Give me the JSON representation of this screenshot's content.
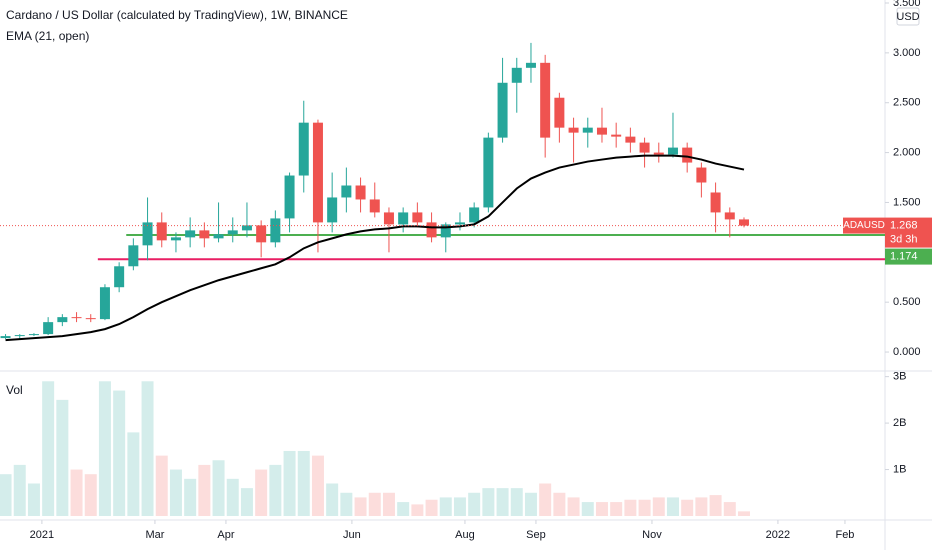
{
  "chart_data": [
    {
      "type": "candlestick",
      "title": "Cardano / US Dollar (calculated by TradingView), 1W, BINANCE",
      "axis_unit": "USD",
      "symbol": "ADAUSD",
      "countdown": "3d 3h",
      "up_color": "#26a69a",
      "down_color": "#ef5350",
      "open": [
        0.14,
        0.16,
        0.17,
        0.18,
        0.3,
        0.35,
        0.34,
        0.33,
        0.65,
        0.86,
        1.07,
        1.3,
        1.12,
        1.15,
        1.22,
        1.14,
        1.18,
        1.22,
        1.27,
        1.1,
        1.34,
        1.77,
        2.3,
        1.3,
        1.55,
        1.67,
        1.53,
        1.4,
        1.28,
        1.4,
        1.3,
        1.15,
        1.28,
        1.3,
        1.45,
        2.15,
        2.7,
        2.85,
        2.9,
        2.55,
        2.25,
        2.2,
        2.25,
        2.18,
        2.16,
        2.1,
        2.0,
        1.98,
        2.05,
        1.85,
        1.6,
        1.4,
        1.33
      ],
      "high": [
        0.18,
        0.18,
        0.19,
        0.35,
        0.38,
        0.4,
        0.38,
        0.68,
        0.9,
        1.14,
        1.55,
        1.4,
        1.2,
        1.35,
        1.3,
        1.5,
        1.35,
        1.5,
        1.32,
        1.42,
        1.8,
        2.52,
        2.33,
        1.8,
        1.85,
        1.75,
        1.7,
        1.45,
        1.45,
        1.5,
        1.4,
        1.3,
        1.4,
        1.5,
        2.2,
        2.95,
        2.95,
        3.1,
        2.98,
        2.6,
        2.35,
        2.35,
        2.45,
        2.3,
        2.25,
        2.15,
        2.1,
        2.4,
        2.1,
        1.9,
        1.7,
        1.45,
        1.35
      ],
      "low": [
        0.13,
        0.13,
        0.16,
        0.17,
        0.26,
        0.3,
        0.3,
        0.32,
        0.6,
        0.82,
        0.92,
        1.05,
        1.0,
        1.05,
        1.05,
        1.1,
        1.1,
        1.15,
        0.95,
        1.05,
        1.2,
        1.6,
        1.0,
        1.2,
        1.4,
        1.4,
        1.35,
        1.0,
        1.2,
        1.25,
        1.1,
        1.0,
        1.22,
        1.25,
        1.4,
        2.1,
        2.4,
        2.7,
        1.95,
        2.1,
        1.9,
        2.05,
        2.1,
        2.05,
        2.0,
        1.85,
        1.9,
        1.95,
        1.8,
        1.55,
        1.2,
        1.15,
        1.25
      ],
      "close": [
        0.16,
        0.17,
        0.18,
        0.3,
        0.35,
        0.34,
        0.33,
        0.65,
        0.86,
        1.07,
        1.3,
        1.12,
        1.15,
        1.22,
        1.14,
        1.18,
        1.22,
        1.27,
        1.1,
        1.34,
        1.77,
        2.3,
        1.3,
        1.55,
        1.67,
        1.53,
        1.4,
        1.28,
        1.4,
        1.3,
        1.15,
        1.28,
        1.3,
        1.45,
        2.15,
        2.7,
        2.85,
        2.9,
        2.15,
        2.25,
        2.2,
        2.25,
        2.18,
        2.16,
        2.1,
        2.0,
        1.98,
        2.05,
        1.9,
        1.7,
        1.4,
        1.33,
        1.268
      ],
      "lines": [
        {
          "name": "EMA (21, open)",
          "color": "#000000",
          "values": [
            0.12,
            0.13,
            0.14,
            0.15,
            0.16,
            0.18,
            0.2,
            0.23,
            0.28,
            0.35,
            0.43,
            0.5,
            0.56,
            0.62,
            0.67,
            0.72,
            0.76,
            0.8,
            0.84,
            0.88,
            0.95,
            1.04,
            1.1,
            1.14,
            1.18,
            1.21,
            1.23,
            1.24,
            1.26,
            1.26,
            1.25,
            1.25,
            1.26,
            1.28,
            1.36,
            1.5,
            1.64,
            1.74,
            1.8,
            1.85,
            1.88,
            1.91,
            1.93,
            1.95,
            1.96,
            1.97,
            1.97,
            1.97,
            1.96,
            1.93,
            1.89,
            1.86,
            1.83
          ]
        }
      ],
      "hlines": [
        {
          "value": 1.174,
          "color": "#4caf50"
        },
        {
          "value": 0.93,
          "color": "#e91e63"
        }
      ],
      "xlim": [
        -0.39,
        61.93
      ],
      "ylim": [
        -0.18,
        3.53
      ],
      "yticks": [
        {
          "value": 0,
          "label": "0.000"
        },
        {
          "value": 0.5,
          "label": "0.500"
        },
        {
          "value": 1.5,
          "label": "1.500"
        },
        {
          "value": 2,
          "label": "2.000"
        },
        {
          "value": 2.5,
          "label": "2.500"
        },
        {
          "value": 3,
          "label": "3.000"
        },
        {
          "value": 3.5,
          "label": "3.500"
        }
      ]
    },
    {
      "type": "bar",
      "title": "Vol",
      "values": [
        0.9,
        1.1,
        0.7,
        2.9,
        2.5,
        1.0,
        0.9,
        2.9,
        2.7,
        1.8,
        2.9,
        1.3,
        1.0,
        0.8,
        1.1,
        1.2,
        0.8,
        0.6,
        1.0,
        1.1,
        1.4,
        1.4,
        1.3,
        0.7,
        0.5,
        0.4,
        0.5,
        0.5,
        0.3,
        0.25,
        0.35,
        0.4,
        0.4,
        0.5,
        0.6,
        0.6,
        0.6,
        0.5,
        0.7,
        0.5,
        0.4,
        0.3,
        0.3,
        0.3,
        0.35,
        0.35,
        0.4,
        0.4,
        0.35,
        0.4,
        0.45,
        0.3,
        0.1
      ],
      "ylim": [
        0,
        3.1
      ],
      "yticks": [
        {
          "value": 1,
          "label": "1B"
        },
        {
          "value": 2,
          "label": "2B"
        },
        {
          "value": 3,
          "label": "3B"
        }
      ],
      "xlim": [
        -0.39,
        61.93
      ],
      "xticks": [
        {
          "value": 2.56,
          "label": "2021"
        },
        {
          "value": 10.52,
          "label": "Mar"
        },
        {
          "value": 15.52,
          "label": "Apr"
        },
        {
          "value": 24.39,
          "label": "Jun"
        },
        {
          "value": 32.35,
          "label": "Aug"
        },
        {
          "value": 37.35,
          "label": "Sep"
        },
        {
          "value": 45.52,
          "label": "Nov"
        },
        {
          "value": 54.39,
          "label": "2022"
        },
        {
          "value": 59.11,
          "label": "Feb"
        }
      ]
    }
  ]
}
